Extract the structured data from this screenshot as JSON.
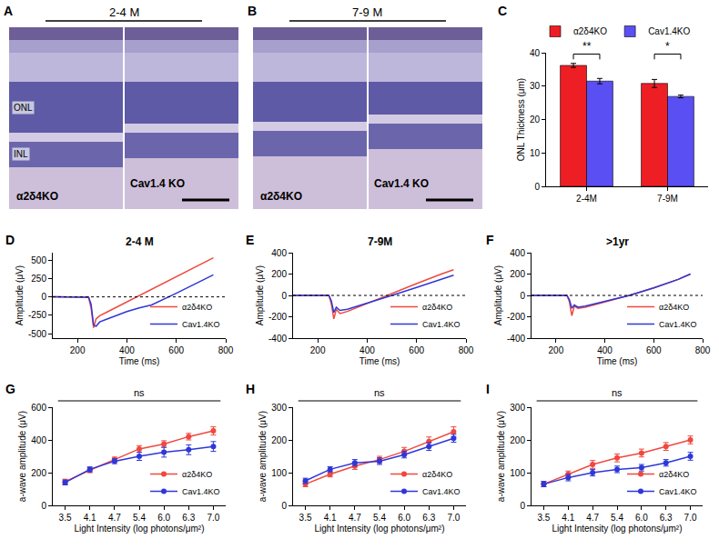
{
  "images": [
    {
      "letter": "A",
      "title": "2-4 M",
      "layer_labels": [
        "ONL",
        "INL"
      ],
      "left_label": "α2δ4KO",
      "right_label": "Cav1.4 KO"
    },
    {
      "letter": "B",
      "title": "7-9 M",
      "left_label": "α2δ4KO",
      "right_label": "Cav1.4 KO"
    }
  ],
  "chart_data": [
    {
      "letter": "C",
      "type": "bar",
      "categories": [
        "2-4M",
        "7-9M"
      ],
      "ylabel": "ONL Thickness (μm)",
      "ylim": [
        0,
        40
      ],
      "yticks": [
        0,
        10,
        20,
        30,
        40
      ],
      "legend": "top",
      "series": [
        {
          "name": "α2δ4KO",
          "color": "#ee1f24",
          "values": [
            36.2,
            30.8
          ],
          "errors": [
            0.6,
            1.2
          ]
        },
        {
          "name": "Cav1.4KO",
          "color": "#5a4ff2",
          "values": [
            31.5,
            26.9
          ],
          "errors": [
            0.8,
            0.4
          ]
        }
      ],
      "annotations": [
        {
          "category": "2-4M",
          "text": "**"
        },
        {
          "category": "7-9M",
          "text": "*"
        }
      ]
    },
    {
      "letter": "D",
      "type": "line",
      "title": "2-4 M",
      "xlabel": "Time (ms)",
      "ylabel": "Amplitude (μV)",
      "x": [
        100,
        150,
        200,
        245,
        255,
        265,
        275,
        290,
        320,
        400,
        450,
        500,
        600,
        700,
        750
      ],
      "xlim": [
        100,
        800
      ],
      "xticks": [
        200,
        400,
        600,
        800
      ],
      "ylim": [
        -560,
        600
      ],
      "yticks": [
        -500,
        -250,
        0,
        250,
        500
      ],
      "legend": "lower right",
      "series": [
        {
          "name": "α2δ4KO",
          "color": "#f0483e",
          "values": [
            0,
            0,
            -5,
            -5,
            -150,
            -420,
            -300,
            -256,
            -205,
            -68,
            20,
            103,
            274,
            445,
            530
          ]
        },
        {
          "name": "Cav1.4KO",
          "color": "#2e37d8",
          "values": [
            0,
            0,
            -5,
            -5,
            -100,
            -380,
            -400,
            -340,
            -300,
            -200,
            -150,
            -110,
            50,
            220,
            300
          ]
        }
      ]
    },
    {
      "letter": "E",
      "type": "line",
      "title": "7-9M",
      "xlabel": "Time (ms)",
      "ylabel": "Amplitude (μV)",
      "x": [
        100,
        150,
        200,
        245,
        255,
        265,
        275,
        290,
        320,
        400,
        450,
        500,
        600,
        700,
        750
      ],
      "xlim": [
        100,
        800
      ],
      "xticks": [
        200,
        400,
        600,
        800
      ],
      "ylim": [
        -400,
        400
      ],
      "yticks": [
        -400,
        -200,
        0,
        200,
        400
      ],
      "legend": "lower right",
      "series": [
        {
          "name": "α2δ4KO",
          "color": "#f0483e",
          "values": [
            0,
            0,
            0,
            0,
            -80,
            -220,
            -130,
            -170,
            -150,
            -75,
            -30,
            20,
            110,
            200,
            240
          ]
        },
        {
          "name": "Cav1.4KO",
          "color": "#2e37d8",
          "values": [
            0,
            0,
            0,
            0,
            -50,
            -160,
            -110,
            -140,
            -130,
            -75,
            -40,
            0,
            75,
            150,
            190
          ]
        }
      ]
    },
    {
      "letter": "F",
      "type": "line",
      "title": ">1yr",
      "xlabel": "Time (ms)",
      "ylabel": "Amplitude (μV)",
      "x": [
        100,
        150,
        200,
        245,
        255,
        265,
        275,
        290,
        320,
        400,
        450,
        500,
        600,
        700,
        750
      ],
      "xlim": [
        100,
        800
      ],
      "xticks": [
        200,
        400,
        600,
        800
      ],
      "ylim": [
        -400,
        400
      ],
      "yticks": [
        -400,
        -200,
        0,
        200,
        400
      ],
      "legend": "lower right",
      "series": [
        {
          "name": "α2δ4KO",
          "color": "#f0483e",
          "values": [
            0,
            0,
            0,
            0,
            -60,
            -190,
            -100,
            -120,
            -110,
            -60,
            -30,
            0,
            70,
            150,
            200
          ]
        },
        {
          "name": "Cav1.4KO",
          "color": "#2e37d8",
          "values": [
            0,
            0,
            0,
            0,
            -40,
            -120,
            -90,
            -110,
            -100,
            -55,
            -25,
            0,
            70,
            150,
            200
          ]
        }
      ]
    },
    {
      "letter": "G",
      "type": "line",
      "marker": "circle",
      "xlabel": "Light Intensity (log photons/μm²)",
      "ylabel": "a-wave amplitude (μV)",
      "categories": [
        "3.5",
        "4.1",
        "4.7",
        "5.4",
        "6.0",
        "6.3",
        "7.0"
      ],
      "ylim": [
        0,
        600
      ],
      "yticks": [
        0,
        200,
        400,
        600
      ],
      "legend": "lower right",
      "annotations": [
        {
          "text": "ns"
        }
      ],
      "series": [
        {
          "name": "α2δ4KO",
          "color": "#f0483e",
          "values": [
            145,
            215,
            280,
            345,
            375,
            420,
            455
          ],
          "errors": [
            15,
            15,
            15,
            20,
            20,
            20,
            25
          ]
        },
        {
          "name": "Cav1.4KO",
          "color": "#2e37d8",
          "values": [
            140,
            220,
            270,
            300,
            325,
            340,
            360
          ],
          "errors": [
            15,
            15,
            15,
            25,
            30,
            30,
            30
          ]
        }
      ]
    },
    {
      "letter": "H",
      "type": "line",
      "marker": "circle",
      "xlabel": "Light Intensity (log photons/μm²)",
      "ylabel": "a-wave amplitude (μV)",
      "categories": [
        "3.5",
        "4.1",
        "4.7",
        "5.4",
        "6.0",
        "6.3",
        "7.0"
      ],
      "ylim": [
        0,
        300
      ],
      "yticks": [
        0,
        100,
        200,
        300
      ],
      "legend": "lower right",
      "annotations": [
        {
          "text": "ns"
        }
      ],
      "series": [
        {
          "name": "α2δ4KO",
          "color": "#f0483e",
          "values": [
            65,
            95,
            120,
            140,
            165,
            195,
            225
          ],
          "errors": [
            8,
            8,
            10,
            10,
            12,
            14,
            15
          ]
        },
        {
          "name": "Cav1.4KO",
          "color": "#2e37d8",
          "values": [
            75,
            110,
            130,
            135,
            155,
            180,
            205
          ],
          "errors": [
            8,
            8,
            10,
            10,
            10,
            12,
            12
          ]
        }
      ]
    },
    {
      "letter": "I",
      "type": "line",
      "marker": "circle",
      "xlabel": "Light Intensity (log photons/μm²)",
      "ylabel": "a-wave amplitude (μV)",
      "categories": [
        "3.5",
        "4.1",
        "4.7",
        "5.4",
        "6.0",
        "6.3",
        "7.0"
      ],
      "ylim": [
        0,
        300
      ],
      "yticks": [
        0,
        100,
        200,
        300
      ],
      "legend": "lower right",
      "annotations": [
        {
          "text": "ns"
        }
      ],
      "series": [
        {
          "name": "α2δ4KO",
          "color": "#f0483e",
          "values": [
            65,
            95,
            125,
            145,
            160,
            180,
            200
          ],
          "errors": [
            8,
            10,
            12,
            12,
            12,
            12,
            12
          ]
        },
        {
          "name": "Cav1.4KO",
          "color": "#2e37d8",
          "values": [
            65,
            85,
            100,
            110,
            115,
            130,
            150
          ],
          "errors": [
            8,
            10,
            10,
            10,
            10,
            10,
            12
          ]
        }
      ]
    }
  ]
}
